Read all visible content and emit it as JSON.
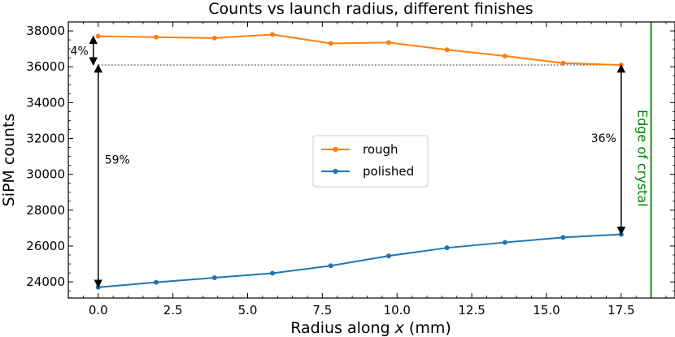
{
  "chart_data": {
    "type": "line",
    "title": "Counts vs launch radius, different finishes",
    "xlabel_prefix": "Radius along ",
    "xlabel_var": "x",
    "xlabel_suffix": " (mm)",
    "ylabel": "SiPM counts",
    "xlim": [
      -1.0,
      19.3
    ],
    "ylim": [
      23100,
      38500
    ],
    "xticks": [
      0.0,
      2.5,
      5.0,
      7.5,
      10.0,
      12.5,
      15.0,
      17.5
    ],
    "xtick_labels": [
      "0.0",
      "2.5",
      "5.0",
      "7.5",
      "10.0",
      "12.5",
      "15.0",
      "17.5"
    ],
    "yticks": [
      24000,
      26000,
      28000,
      30000,
      32000,
      34000,
      36000,
      38000
    ],
    "ytick_labels": [
      "24000",
      "26000",
      "28000",
      "30000",
      "32000",
      "34000",
      "36000",
      "38000"
    ],
    "grid": false,
    "legend_position": "center",
    "series": [
      {
        "name": "rough",
        "color": "#ff7f0e",
        "x": [
          0.0,
          1.94,
          3.89,
          5.83,
          7.78,
          9.72,
          11.67,
          13.61,
          15.56,
          17.5
        ],
        "y": [
          37700,
          37650,
          37600,
          37800,
          37300,
          37350,
          36950,
          36600,
          36200,
          36100
        ]
      },
      {
        "name": "polished",
        "color": "#1f77b4",
        "x": [
          0.0,
          1.94,
          3.89,
          5.83,
          7.78,
          9.72,
          11.67,
          13.61,
          15.56,
          17.5
        ],
        "y": [
          23700,
          23980,
          24230,
          24480,
          24900,
          25450,
          25900,
          26200,
          26480,
          26650
        ]
      }
    ],
    "reference_line": {
      "y": 36100,
      "x_from": 0.0,
      "x_to": 17.5,
      "style": "dashed"
    },
    "edge_line": {
      "x": 18.5,
      "label": "Edge of crystal",
      "color": "#008000"
    },
    "annotations": [
      {
        "text": "4%",
        "x": 0.0,
        "y_from": 37700,
        "y_to": 36100
      },
      {
        "text": "59%",
        "x": 0.0,
        "y_from": 36100,
        "y_to": 23700
      },
      {
        "text": "36%",
        "x": 17.5,
        "y_from": 36100,
        "y_to": 26650
      }
    ]
  }
}
